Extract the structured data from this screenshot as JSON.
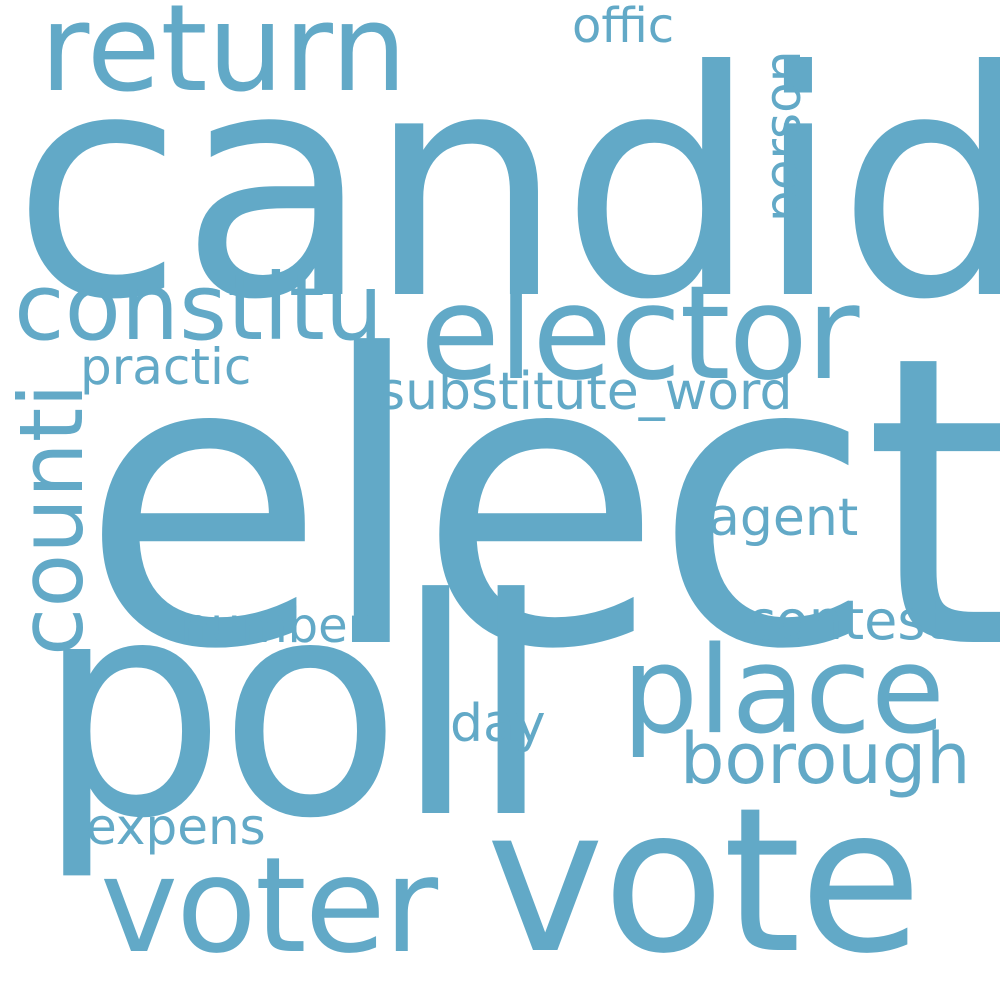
{
  "color": "#62A9C7",
  "background": "#ffffff",
  "words": {
    "candid": "candid",
    "elect": "elect",
    "poll": "poll",
    "vote": "vote",
    "elector": "elector",
    "return": "return",
    "constitu": "constitu",
    "voter": "voter",
    "place": "place",
    "counti": "counti",
    "borough": "borough",
    "substitute_word": "substitute_word",
    "contest": "contest",
    "agent": "agent",
    "practic": "practic",
    "number": "number",
    "day": "day",
    "expens": "expens",
    "offic": "offic",
    "person": "person"
  }
}
